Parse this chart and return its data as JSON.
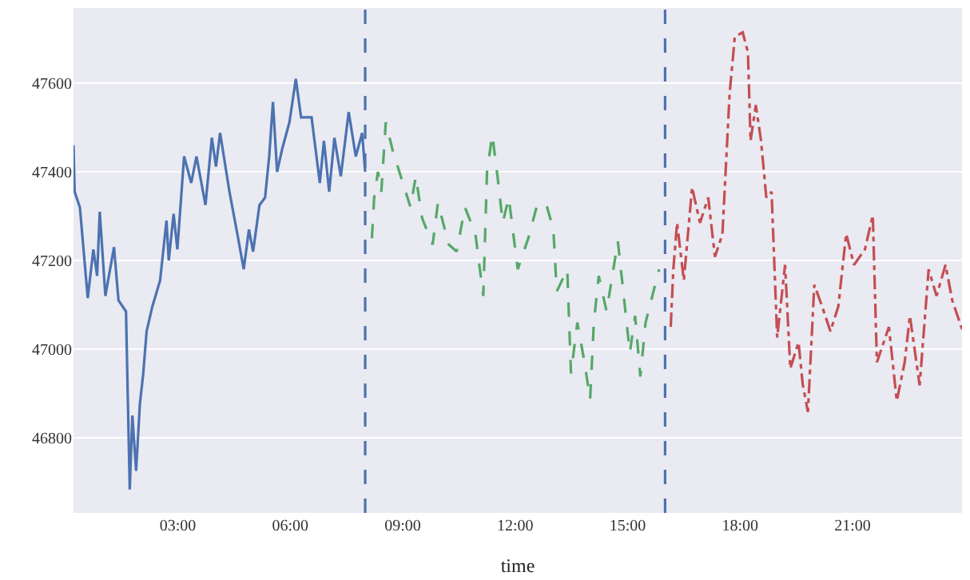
{
  "chart_data": {
    "type": "line",
    "xlabel": "time",
    "grid": "y",
    "xlim": [
      0.22,
      23.92
    ],
    "ylim": [
      46630,
      47770
    ],
    "xticks": [
      {
        "value": 3,
        "label": "03:00"
      },
      {
        "value": 6,
        "label": "06:00"
      },
      {
        "value": 9,
        "label": "09:00"
      },
      {
        "value": 12,
        "label": "12:00"
      },
      {
        "value": 15,
        "label": "15:00"
      },
      {
        "value": 18,
        "label": "18:00"
      },
      {
        "value": 21,
        "label": "21:00"
      }
    ],
    "yticks": [
      46800,
      47000,
      47200,
      47400,
      47600
    ],
    "ref_lines": [
      {
        "axis": "x",
        "value": 8,
        "label": null,
        "color": "#4c72b0",
        "line_style": "dashed"
      },
      {
        "axis": "x",
        "value": 16,
        "label": null,
        "color": "#4c72b0",
        "line_style": "dashed"
      }
    ],
    "series": [
      {
        "color": "#4c72b0",
        "line_style": "solid",
        "x": [
          0.22,
          0.25,
          0.39,
          0.6,
          0.75,
          0.85,
          0.92,
          1.07,
          1.3,
          1.42,
          1.62,
          1.72,
          1.79,
          1.89,
          1.99,
          2.08,
          2.17,
          2.32,
          2.53,
          2.7,
          2.76,
          2.89,
          2.99,
          3.17,
          3.36,
          3.5,
          3.74,
          3.91,
          4.02,
          4.13,
          4.38,
          4.59,
          4.76,
          4.9,
          5.01,
          5.18,
          5.33,
          5.44,
          5.54,
          5.65,
          5.79,
          5.98,
          6.15,
          6.29,
          6.57,
          6.79,
          6.9,
          7.04,
          7.18,
          7.35,
          7.56,
          7.75,
          7.92,
          8.0
        ],
        "values": [
          47460,
          47355,
          47320,
          47115,
          47225,
          47165,
          47310,
          47120,
          47230,
          47110,
          47085,
          46683,
          46850,
          46725,
          46875,
          46945,
          47040,
          47095,
          47155,
          47290,
          47200,
          47305,
          47225,
          47435,
          47375,
          47435,
          47325,
          47477,
          47412,
          47488,
          47355,
          47260,
          47180,
          47270,
          47220,
          47325,
          47342,
          47435,
          47558,
          47400,
          47453,
          47512,
          47610,
          47523,
          47523,
          47375,
          47470,
          47355,
          47477,
          47390,
          47535,
          47435,
          47488,
          47400
        ]
      },
      {
        "color": "#55a868",
        "line_style": "dashed",
        "x": [
          8.18,
          8.24,
          8.34,
          8.43,
          8.55,
          8.74,
          8.95,
          9.21,
          9.35,
          9.52,
          9.8,
          9.94,
          10.23,
          10.44,
          10.66,
          10.94,
          11.15,
          11.25,
          11.39,
          11.53,
          11.67,
          11.83,
          12.07,
          12.35,
          12.57,
          12.82,
          13.02,
          13.11,
          13.39,
          13.49,
          13.66,
          13.85,
          14.0,
          14.1,
          14.23,
          14.44,
          14.74,
          14.91,
          15.06,
          15.2,
          15.34,
          15.48,
          15.84
        ],
        "values": [
          47250,
          47342,
          47400,
          47355,
          47512,
          47446,
          47390,
          47320,
          47390,
          47295,
          47236,
          47330,
          47236,
          47220,
          47320,
          47260,
          47120,
          47400,
          47484,
          47390,
          47285,
          47342,
          47180,
          47250,
          47320,
          47330,
          47270,
          47130,
          47180,
          46945,
          47060,
          46970,
          46886,
          47060,
          47165,
          47085,
          47243,
          47110,
          46992,
          47075,
          46938,
          47060,
          47180
        ]
      },
      {
        "color": "#c44e52",
        "line_style": "dashdot",
        "x": [
          16.15,
          16.22,
          16.32,
          16.5,
          16.72,
          16.93,
          17.15,
          17.33,
          17.53,
          17.72,
          17.86,
          18.07,
          18.21,
          18.28,
          18.42,
          18.56,
          18.7,
          18.84,
          18.99,
          19.2,
          19.34,
          19.56,
          19.67,
          19.81,
          19.98,
          20.19,
          20.41,
          20.62,
          20.83,
          21.04,
          21.33,
          21.54,
          21.65,
          21.97,
          22.18,
          22.39,
          22.53,
          22.79,
          23.03,
          23.24,
          23.48,
          23.66,
          23.92
        ],
        "values": [
          47050,
          47180,
          47285,
          47155,
          47365,
          47285,
          47342,
          47208,
          47260,
          47575,
          47705,
          47715,
          47670,
          47470,
          47551,
          47470,
          47342,
          47355,
          47026,
          47190,
          46956,
          47015,
          46921,
          46858,
          47145,
          47096,
          47040,
          47096,
          47260,
          47190,
          47225,
          47302,
          46970,
          47050,
          46883,
          46970,
          47075,
          46918,
          47180,
          47120,
          47190,
          47110,
          47045
        ]
      }
    ]
  }
}
